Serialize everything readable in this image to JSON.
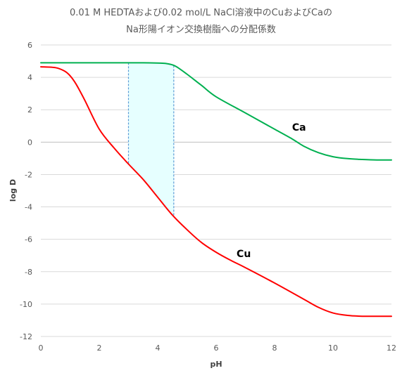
{
  "chart_data": {
    "type": "line",
    "title_line1": "0.01 M HEDTAおよび0.02 mol/L NaCl溶液中のCuおよびCaの",
    "title_line2": "Na形陽イオン交換樹脂への分配係数",
    "xlabel": "pH",
    "ylabel": "log D",
    "xlim": [
      0,
      12
    ],
    "ylim": [
      -12,
      6
    ],
    "x_ticks": [
      0,
      2,
      4,
      6,
      8,
      10,
      12
    ],
    "y_ticks": [
      6,
      4,
      2,
      0,
      -2,
      -4,
      -6,
      -8,
      -10,
      -12
    ],
    "x_tick_labels": [
      "0",
      "2",
      "4",
      "6",
      "8",
      "10",
      "12"
    ],
    "y_tick_labels": [
      "6",
      "4",
      "2",
      "0",
      "-2",
      "-4",
      "-6",
      "-8",
      "-10",
      "-12"
    ],
    "grid": "horizontal",
    "series": [
      {
        "name": "Ca",
        "color": "#00b050",
        "x": [
          0,
          1,
          2,
          3,
          3.5,
          4,
          4.3,
          4.6,
          5,
          5.5,
          6,
          7,
          8,
          8.6,
          9,
          9.5,
          10,
          10.5,
          11,
          11.5,
          12
        ],
        "y": [
          4.9,
          4.9,
          4.9,
          4.9,
          4.9,
          4.88,
          4.85,
          4.7,
          4.2,
          3.5,
          2.8,
          1.8,
          0.8,
          0.2,
          -0.25,
          -0.65,
          -0.9,
          -1.02,
          -1.07,
          -1.1,
          -1.1
        ]
      },
      {
        "name": "Cu",
        "color": "#ff0000",
        "x": [
          0,
          0.5,
          0.8,
          1,
          1.2,
          1.5,
          2,
          2.5,
          3,
          3.5,
          4,
          4.5,
          5,
          5.5,
          6,
          6.5,
          7,
          8,
          9,
          9.5,
          10,
          10.5,
          11,
          11.5,
          12
        ],
        "y": [
          4.65,
          4.6,
          4.4,
          4.1,
          3.6,
          2.6,
          0.8,
          -0.35,
          -1.35,
          -2.3,
          -3.4,
          -4.5,
          -5.4,
          -6.2,
          -6.8,
          -7.3,
          -7.75,
          -8.7,
          -9.7,
          -10.2,
          -10.55,
          -10.7,
          -10.75,
          -10.75,
          -10.75
        ]
      }
    ],
    "series_labels": [
      {
        "text": "Ca",
        "x": 8.6,
        "y": 0.7
      },
      {
        "text": "Cu",
        "x": 6.7,
        "y": -7.1
      }
    ],
    "shaded_region": {
      "x_start": 3.0,
      "x_end": 4.55,
      "fill": "#e6ffff",
      "edge_color": "#5b9bd5"
    }
  }
}
